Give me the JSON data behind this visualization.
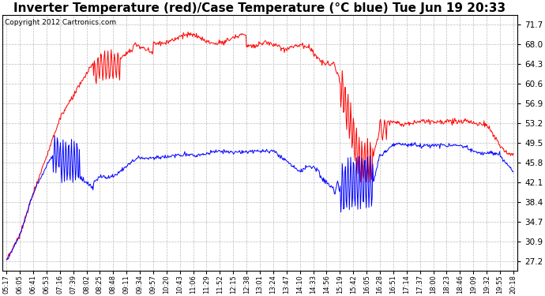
{
  "title": "Inverter Temperature (red)/Case Temperature (°C blue) Tue Jun 19 20:33",
  "copyright": "Copyright 2012 Cartronics.com",
  "yticks": [
    27.2,
    30.9,
    34.7,
    38.4,
    42.1,
    45.8,
    49.5,
    53.2,
    56.9,
    60.6,
    64.3,
    68.0,
    71.7
  ],
  "ylim": [
    25.5,
    73.5
  ],
  "xtick_labels": [
    "05:17",
    "06:05",
    "06:41",
    "06:53",
    "07:16",
    "07:39",
    "08:02",
    "08:25",
    "08:48",
    "09:11",
    "09:34",
    "09:57",
    "10:20",
    "10:43",
    "11:06",
    "11:29",
    "11:52",
    "12:15",
    "12:38",
    "13:01",
    "13:24",
    "13:47",
    "14:10",
    "14:33",
    "14:56",
    "15:19",
    "15:42",
    "16:05",
    "16:28",
    "16:51",
    "17:14",
    "17:37",
    "18:00",
    "18:23",
    "18:46",
    "19:09",
    "19:32",
    "19:55",
    "20:18"
  ],
  "bg_color": "#ffffff",
  "plot_bg_color": "#ffffff",
  "grid_color": "#bbbbbb",
  "red_color": "#ff0000",
  "blue_color": "#0000ff",
  "title_fontsize": 11,
  "copyright_fontsize": 6.5
}
